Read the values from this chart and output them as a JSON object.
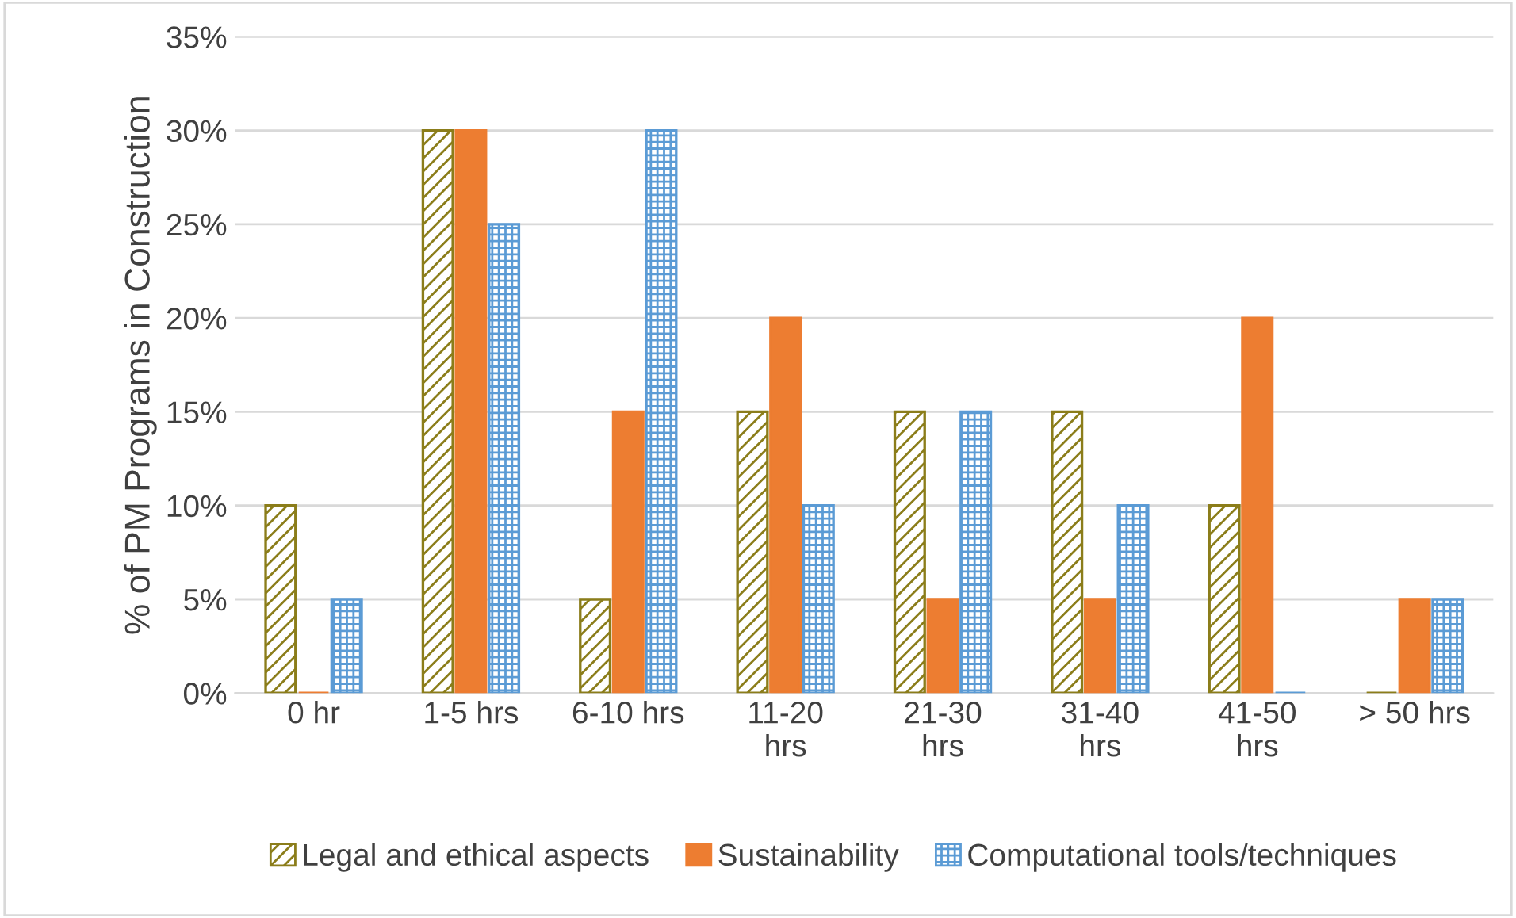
{
  "chart_data": {
    "type": "bar",
    "ylabel": "% of PM Programs in Construction",
    "categories": [
      "0 hr",
      "1-5 hrs",
      "6-10 hrs",
      "11-20\nhrs",
      "21-30\nhrs",
      "31-40\nhrs",
      "41-50\nhrs",
      "> 50 hrs"
    ],
    "series": [
      {
        "name": "Legal and ethical aspects",
        "color": "#8b7d1a",
        "values": [
          10,
          30,
          5,
          15,
          15,
          15,
          10,
          0
        ]
      },
      {
        "name": "Sustainability",
        "color": "#ed7d31",
        "values": [
          0,
          30,
          15,
          20,
          5,
          5,
          20,
          5
        ]
      },
      {
        "name": "Computational tools/techniques",
        "color": "#5b9bd5",
        "values": [
          5,
          25,
          30,
          10,
          15,
          10,
          0,
          5
        ]
      }
    ],
    "ylim": [
      0,
      35
    ],
    "yticks": [
      {
        "value": 0,
        "label": "0%"
      },
      {
        "value": 5,
        "label": "5%"
      },
      {
        "value": 10,
        "label": "10%"
      },
      {
        "value": 15,
        "label": "15%"
      },
      {
        "value": 20,
        "label": "20%"
      },
      {
        "value": 25,
        "label": "25%"
      },
      {
        "value": 30,
        "label": "30%"
      },
      {
        "value": 35,
        "label": "35%"
      }
    ],
    "grid": "y",
    "legend": "bottom"
  }
}
